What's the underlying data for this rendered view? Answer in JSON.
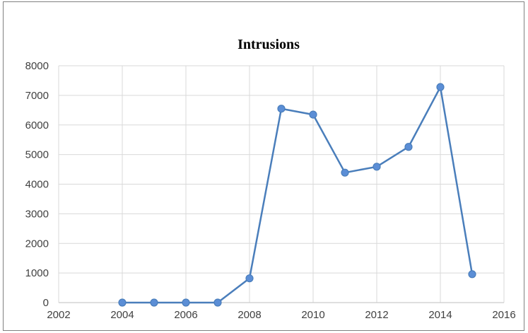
{
  "chart_data": {
    "type": "scatter",
    "title": "Intrusions",
    "xlim": [
      2002,
      2016
    ],
    "ylim": [
      0,
      8000
    ],
    "x_ticks": [
      2002,
      2004,
      2006,
      2008,
      2010,
      2012,
      2014,
      2016
    ],
    "y_ticks": [
      0,
      1000,
      2000,
      3000,
      4000,
      5000,
      6000,
      7000,
      8000
    ],
    "grid": true,
    "legend": "none",
    "series": [
      {
        "x": [
          2004,
          2005,
          2006,
          2007,
          2008,
          2009,
          2010,
          2011,
          2012,
          2013,
          2014,
          2015
        ],
        "y": [
          0,
          0,
          0,
          0,
          820,
          6550,
          6350,
          4390,
          4590,
          5260,
          7280,
          960
        ],
        "color": "#4a7ebb",
        "marker_color": "#5b8ed6"
      }
    ]
  }
}
